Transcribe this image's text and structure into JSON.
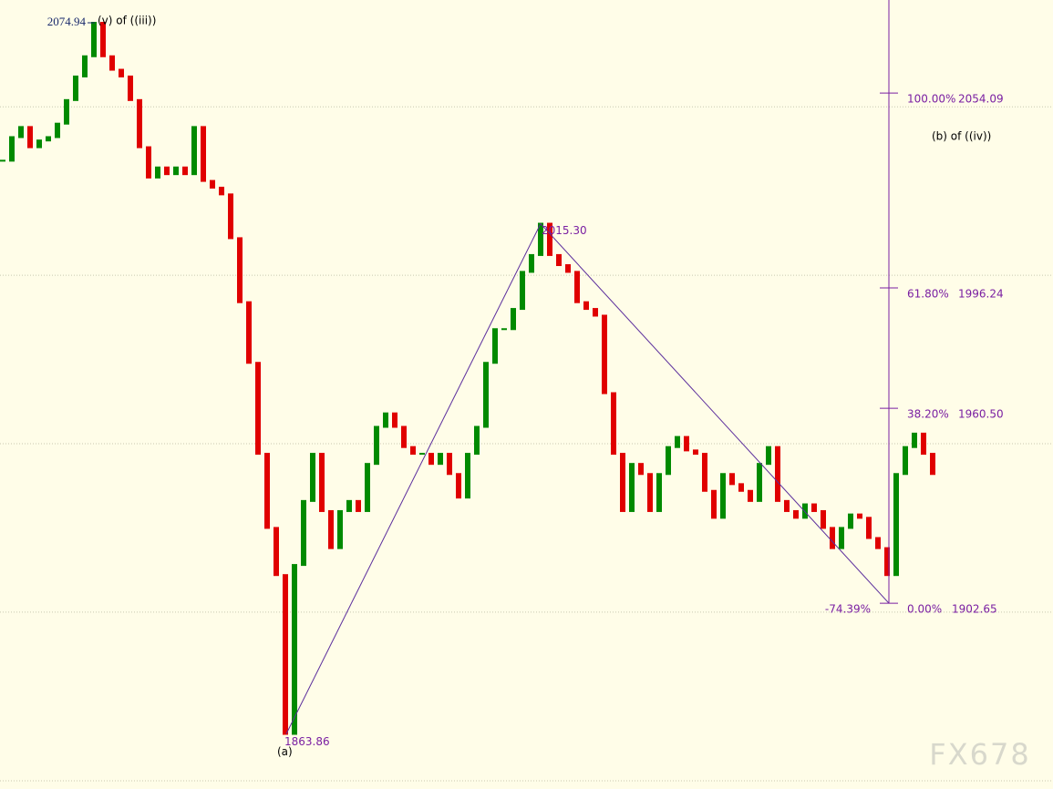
{
  "chart_data": {
    "type": "line",
    "series": [
      {
        "color_up": "#008a00",
        "color_down": "#e00000",
        "values": [
          2034,
          2041,
          2044,
          2038,
          2040,
          2041,
          2045,
          2052,
          2059,
          2065,
          2074.94,
          2065,
          2061,
          2059,
          2052,
          2038,
          2029,
          2032,
          2030,
          2032,
          2030,
          2044,
          2028,
          2026,
          2024,
          2011,
          1992,
          1974,
          1947,
          1925,
          1911,
          1863.86,
          1914,
          1933,
          1947,
          1930,
          1919,
          1930,
          1933,
          1930,
          1944,
          1955,
          1959,
          1955,
          1949,
          1947,
          1947,
          1944,
          1947,
          1941,
          1934,
          1947,
          1955,
          1974,
          1984,
          1984,
          1990,
          2001,
          2006,
          2015.3,
          2006,
          2003,
          2001,
          1992,
          1990,
          1988,
          1965,
          1947,
          1930,
          1944,
          1941,
          1930,
          1941,
          1949,
          1952,
          1948,
          1947,
          1936,
          1928,
          1941,
          1938,
          1936,
          1933,
          1944,
          1949,
          1933,
          1930,
          1928,
          1932,
          1930,
          1925,
          1919,
          1925,
          1929,
          1928,
          1922,
          1919,
          1911,
          1941,
          1949,
          1953,
          1947,
          1941
        ]
      }
    ],
    "ylim": [
      1847.5,
      2081.7
    ],
    "grid_levels": [
      1900,
      1950,
      2000,
      2050
    ],
    "grid_color": "#c8c8b0",
    "peak": {
      "value": 2074.94,
      "label": "(v) of ((iii))"
    },
    "swing_high": {
      "value": 2015.3,
      "value_label": "2015.30"
    },
    "swing_low": {
      "value": 1863.86,
      "label": "(a)"
    },
    "fib_color": "#7a1fa2",
    "fib_levels": [
      {
        "label": "100.00%",
        "value": 2054.09
      },
      {
        "label": "61.80%",
        "value": 1996.24
      },
      {
        "label": "38.20%",
        "value": 1960.5,
        "value_label": "1960.50"
      },
      {
        "label": "0.00%",
        "value": 1902.65
      }
    ],
    "fib_annotation": "(b) of ((iv))",
    "zigzag_end_label": "-74.39%",
    "watermark": "FX678"
  }
}
